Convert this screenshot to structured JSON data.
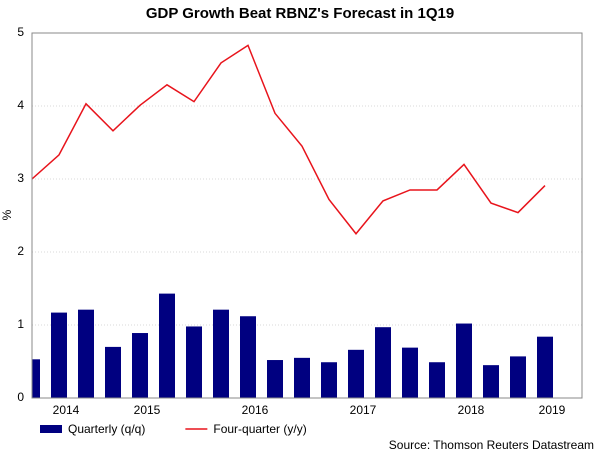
{
  "chart_data": {
    "type": "bar_line",
    "title": "GDP Growth Beat RBNZ's Forecast in 1Q19",
    "y_label": "%",
    "source": "Source: Thomson Reuters Datastream",
    "categories": [
      null,
      "2014",
      null,
      null,
      "2015",
      null,
      null,
      null,
      "2016",
      null,
      null,
      null,
      "2017",
      null,
      null,
      null,
      "2018",
      null,
      null,
      "2019"
    ],
    "series": [
      {
        "name": "Quarterly (q/q)",
        "color": "#000080",
        "kind": "bar",
        "values": [
          0.53,
          1.17,
          1.21,
          0.7,
          0.89,
          1.43,
          0.98,
          1.21,
          1.12,
          0.52,
          0.55,
          0.49,
          0.66,
          0.97,
          0.69,
          0.49,
          1.02,
          0.45,
          0.57,
          0.84
        ]
      },
      {
        "name": "Four-quarter (y/y)",
        "color": "#e8141c",
        "kind": "line",
        "values": [
          3.0,
          3.33,
          4.03,
          3.66,
          4.01,
          4.29,
          4.06,
          4.59,
          4.83,
          3.9,
          3.45,
          2.72,
          2.25,
          2.7,
          2.85,
          2.85,
          3.2,
          2.67,
          2.54,
          2.91
        ]
      }
    ],
    "ylim": [
      0,
      5
    ],
    "yticks": [
      0,
      1,
      2,
      3,
      4,
      5
    ],
    "grid": true
  }
}
